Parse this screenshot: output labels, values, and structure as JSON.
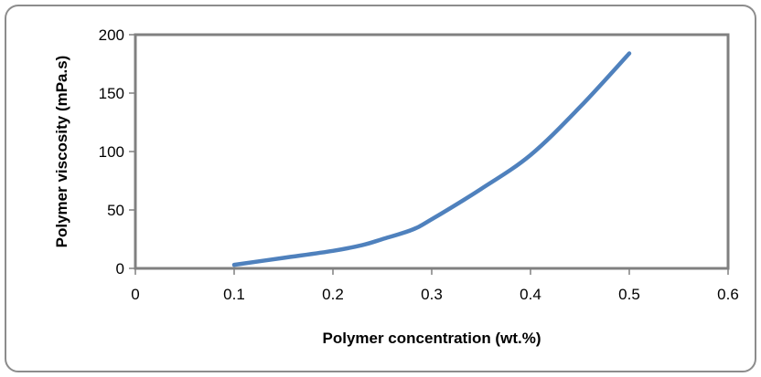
{
  "chart_data": {
    "type": "line",
    "title": "",
    "xlabel": "Polymer concentration (wt.%)",
    "ylabel": "Polymer viscosity (mPa.s)",
    "xlim": [
      0,
      0.6
    ],
    "ylim": [
      0,
      200
    ],
    "x_ticks": [
      "0",
      "0.1",
      "0.2",
      "0.3",
      "0.4",
      "0.5",
      "0.6"
    ],
    "y_ticks": [
      "0",
      "50",
      "100",
      "150",
      "200"
    ],
    "grid": false,
    "legend": "none",
    "series": [
      {
        "color": "#4F81BD",
        "x": [
          0.1,
          0.15,
          0.2,
          0.23,
          0.25,
          0.28,
          0.3,
          0.35,
          0.4,
          0.45,
          0.5
        ],
        "y": [
          3,
          9,
          15,
          20,
          25,
          33,
          42,
          68,
          97,
          138,
          184
        ]
      }
    ]
  }
}
